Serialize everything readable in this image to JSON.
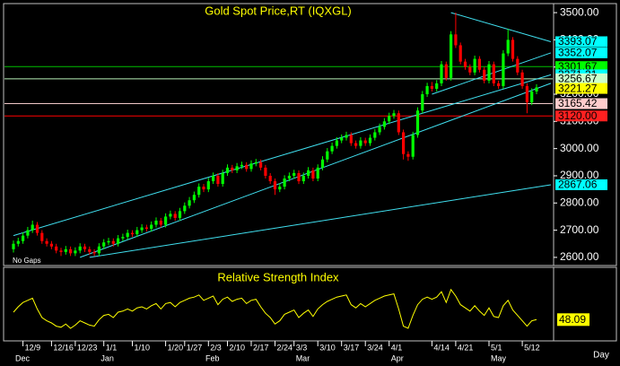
{
  "chart_data": [
    {
      "type": "candlestick",
      "title": "Gold Spot Price,RT (IQXGL)",
      "annotation": "No Gaps",
      "xlabel": "Day",
      "up_color": "#00ff00",
      "down_color": "#ff0000",
      "ylim": [
        2570,
        3530
      ],
      "yticks": [
        {
          "value": 2600,
          "label": "2600.00"
        },
        {
          "value": 2700,
          "label": "2700.00"
        },
        {
          "value": 2800,
          "label": "2800.00"
        },
        {
          "value": 2900,
          "label": "2900.00"
        },
        {
          "value": 3000,
          "label": "3000.00"
        },
        {
          "value": 3100,
          "label": "3100.00"
        },
        {
          "value": 3200,
          "label": "3200.00"
        },
        {
          "value": 3300,
          "label": "3300.00"
        },
        {
          "value": 3400,
          "label": "3400.00"
        },
        {
          "value": 3500,
          "label": "3500.00"
        }
      ],
      "categories": [
        null,
        null,
        "12/9",
        null,
        null,
        null,
        null,
        null,
        "12/16",
        null,
        null,
        null,
        null,
        "12/23",
        null,
        null,
        null,
        null,
        null,
        "1/1",
        null,
        null,
        null,
        null,
        null,
        "1/10",
        null,
        null,
        null,
        null,
        null,
        null,
        "1/20",
        null,
        null,
        null,
        "1/27",
        null,
        null,
        null,
        null,
        "2/3",
        null,
        null,
        null,
        "2/10",
        null,
        null,
        null,
        null,
        "2/17",
        null,
        null,
        null,
        null,
        "2/24",
        null,
        null,
        null,
        "3/3",
        null,
        null,
        null,
        null,
        "3/10",
        null,
        null,
        null,
        null,
        "3/17",
        null,
        null,
        null,
        null,
        "3/24",
        null,
        null,
        null,
        null,
        "4/1",
        null,
        null,
        null,
        null,
        null,
        null,
        null,
        null,
        "4/14",
        null,
        null,
        null,
        null,
        "4/21",
        null,
        null,
        null,
        null,
        null,
        null,
        "5/1",
        null,
        null,
        null,
        null,
        null,
        null,
        "5/12",
        null,
        null,
        null
      ],
      "months": [
        "Dec",
        null,
        null,
        null,
        null,
        null,
        null,
        null,
        null,
        null,
        null,
        null,
        null,
        null,
        null,
        null,
        null,
        null,
        "Jan",
        null,
        null,
        null,
        null,
        null,
        null,
        null,
        null,
        null,
        null,
        null,
        null,
        null,
        null,
        null,
        null,
        null,
        null,
        null,
        null,
        null,
        "Feb",
        null,
        null,
        null,
        null,
        null,
        null,
        null,
        null,
        null,
        null,
        null,
        null,
        null,
        null,
        null,
        null,
        null,
        null,
        "Mar",
        null,
        null,
        null,
        null,
        null,
        null,
        null,
        null,
        null,
        null,
        null,
        null,
        null,
        null,
        null,
        null,
        null,
        null,
        null,
        "Apr",
        null,
        null,
        null,
        null,
        null,
        null,
        null,
        null,
        null,
        null,
        null,
        null,
        null,
        null,
        null,
        null,
        null,
        null,
        null,
        null,
        "May",
        null,
        null,
        null,
        null,
        null,
        null,
        null,
        null,
        null,
        null
      ],
      "candles": [
        [
          2630,
          2662,
          2618,
          2650
        ],
        [
          2650,
          2672,
          2640,
          2660
        ],
        [
          2660,
          2692,
          2650,
          2680
        ],
        [
          2680,
          2712,
          2670,
          2700
        ],
        [
          2700,
          2735,
          2690,
          2720
        ],
        [
          2720,
          2730,
          2680,
          2690
        ],
        [
          2690,
          2700,
          2650,
          2660
        ],
        [
          2660,
          2670,
          2640,
          2650
        ],
        [
          2650,
          2660,
          2630,
          2640
        ],
        [
          2640,
          2650,
          2615,
          2625
        ],
        [
          2625,
          2635,
          2605,
          2620
        ],
        [
          2620,
          2642,
          2610,
          2630
        ],
        [
          2630,
          2640,
          2605,
          2615
        ],
        [
          2615,
          2637,
          2605,
          2625
        ],
        [
          2625,
          2652,
          2615,
          2640
        ],
        [
          2640,
          2650,
          2620,
          2630
        ],
        [
          2630,
          2640,
          2610,
          2620
        ],
        [
          2620,
          2630,
          2605,
          2615
        ],
        [
          2615,
          2652,
          2605,
          2640
        ],
        [
          2640,
          2667,
          2630,
          2655
        ],
        [
          2655,
          2672,
          2645,
          2660
        ],
        [
          2660,
          2670,
          2640,
          2650
        ],
        [
          2650,
          2682,
          2640,
          2670
        ],
        [
          2670,
          2687,
          2660,
          2675
        ],
        [
          2675,
          2702,
          2665,
          2690
        ],
        [
          2690,
          2700,
          2675,
          2685
        ],
        [
          2685,
          2712,
          2675,
          2700
        ],
        [
          2700,
          2722,
          2690,
          2710
        ],
        [
          2710,
          2720,
          2695,
          2705
        ],
        [
          2705,
          2732,
          2695,
          2720
        ],
        [
          2720,
          2747,
          2710,
          2735
        ],
        [
          2735,
          2745,
          2710,
          2720
        ],
        [
          2720,
          2762,
          2710,
          2750
        ],
        [
          2750,
          2772,
          2740,
          2760
        ],
        [
          2760,
          2770,
          2735,
          2745
        ],
        [
          2745,
          2782,
          2735,
          2770
        ],
        [
          2770,
          2802,
          2760,
          2790
        ],
        [
          2790,
          2822,
          2780,
          2810
        ],
        [
          2810,
          2842,
          2800,
          2830
        ],
        [
          2830,
          2872,
          2820,
          2860
        ],
        [
          2860,
          2870,
          2840,
          2850
        ],
        [
          2850,
          2892,
          2840,
          2880
        ],
        [
          2880,
          2912,
          2870,
          2900
        ],
        [
          2900,
          2910,
          2860,
          2870
        ],
        [
          2870,
          2922,
          2860,
          2910
        ],
        [
          2910,
          2942,
          2900,
          2930
        ],
        [
          2930,
          2940,
          2910,
          2920
        ],
        [
          2920,
          2947,
          2910,
          2935
        ],
        [
          2935,
          2952,
          2925,
          2940
        ],
        [
          2940,
          2950,
          2915,
          2925
        ],
        [
          2925,
          2957,
          2915,
          2945
        ],
        [
          2945,
          2962,
          2935,
          2950
        ],
        [
          2950,
          2960,
          2920,
          2930
        ],
        [
          2930,
          2940,
          2890,
          2900
        ],
        [
          2900,
          2910,
          2870,
          2880
        ],
        [
          2880,
          2890,
          2830,
          2850
        ],
        [
          2850,
          2872,
          2840,
          2860
        ],
        [
          2860,
          2902,
          2850,
          2890
        ],
        [
          2890,
          2912,
          2880,
          2900
        ],
        [
          2900,
          2922,
          2890,
          2910
        ],
        [
          2910,
          2920,
          2870,
          2880
        ],
        [
          2880,
          2912,
          2870,
          2900
        ],
        [
          2900,
          2932,
          2890,
          2920
        ],
        [
          2920,
          2930,
          2880,
          2890
        ],
        [
          2890,
          2942,
          2880,
          2930
        ],
        [
          2930,
          2972,
          2920,
          2960
        ],
        [
          2960,
          3002,
          2950,
          2990
        ],
        [
          2990,
          3022,
          2980,
          3010
        ],
        [
          3010,
          3042,
          3000,
          3030
        ],
        [
          3030,
          3052,
          3020,
          3040
        ],
        [
          3040,
          3062,
          3030,
          3050
        ],
        [
          3050,
          3060,
          3010,
          3020
        ],
        [
          3020,
          3030,
          3000,
          3010
        ],
        [
          3010,
          3042,
          3000,
          3030
        ],
        [
          3030,
          3040,
          3010,
          3020
        ],
        [
          3020,
          3052,
          3010,
          3040
        ],
        [
          3040,
          3072,
          3030,
          3060
        ],
        [
          3060,
          3092,
          3050,
          3080
        ],
        [
          3080,
          3112,
          3070,
          3100
        ],
        [
          3100,
          3132,
          3090,
          3120
        ],
        [
          3120,
          3142,
          3110,
          3130
        ],
        [
          3130,
          3140,
          3050,
          3060
        ],
        [
          3060,
          3070,
          2960,
          2980
        ],
        [
          2980,
          2990,
          2955,
          2970
        ],
        [
          2970,
          3062,
          2960,
          3050
        ],
        [
          3050,
          3152,
          3040,
          3140
        ],
        [
          3140,
          3212,
          3130,
          3200
        ],
        [
          3200,
          3242,
          3190,
          3230
        ],
        [
          3230,
          3245,
          3210,
          3220
        ],
        [
          3220,
          3252,
          3210,
          3240
        ],
        [
          3240,
          3322,
          3230,
          3310
        ],
        [
          3310,
          3320,
          3250,
          3260
        ],
        [
          3260,
          3432,
          3250,
          3420
        ],
        [
          3420,
          3500,
          3370,
          3380
        ],
        [
          3380,
          3390,
          3310,
          3320
        ],
        [
          3320,
          3330,
          3290,
          3300
        ],
        [
          3300,
          3310,
          3270,
          3280
        ],
        [
          3280,
          3342,
          3270,
          3330
        ],
        [
          3330,
          3340,
          3280,
          3290
        ],
        [
          3290,
          3300,
          3240,
          3250
        ],
        [
          3250,
          3322,
          3240,
          3310
        ],
        [
          3310,
          3320,
          3230,
          3240
        ],
        [
          3240,
          3250,
          3220,
          3230
        ],
        [
          3230,
          3362,
          3220,
          3350
        ],
        [
          3350,
          3440,
          3340,
          3400
        ],
        [
          3400,
          3410,
          3320,
          3330
        ],
        [
          3330,
          3340,
          3270,
          3280
        ],
        [
          3280,
          3290,
          3220,
          3230
        ],
        [
          3230,
          3240,
          3130,
          3170
        ],
        [
          3170,
          3222,
          3160,
          3210
        ],
        [
          3210,
          3237,
          3200,
          3225
        ]
      ],
      "levels": [
        {
          "value": 3301.67,
          "label": "3301.67",
          "color": "#00c000"
        },
        {
          "value": 3256.67,
          "label": "3256.67",
          "color": "#b8f0b8"
        },
        {
          "value": 3165.42,
          "label": "3165.42",
          "color": "#f0c8c8"
        },
        {
          "value": 3120,
          "label": "3120.00",
          "color": "#ff0000"
        }
      ],
      "trendlines": [
        {
          "x": [
            0,
            113
          ],
          "y": [
            2680,
            3271.31
          ]
        },
        {
          "x": [
            14,
            113
          ],
          "y": [
            2600,
            3240
          ]
        },
        {
          "x": [
            16,
            113
          ],
          "y": [
            2600,
            2867.06
          ]
        },
        {
          "x": [
            92,
            113
          ],
          "y": [
            3500,
            3393.07
          ]
        },
        {
          "x": [
            88,
            113
          ],
          "y": [
            3200,
            3352.07
          ]
        }
      ],
      "trend_color": "#40e0f0",
      "right_labels": [
        {
          "value": 3393.07,
          "label": "3393.07",
          "color": "#00ffff"
        },
        {
          "value": 3352.07,
          "label": "3352.07",
          "color": "#00ffff"
        },
        {
          "value": 3301.67,
          "label": "3301.67",
          "color": "#00ff00"
        },
        {
          "value": 3271.31,
          "label": "3271.31",
          "color": "#00ffff"
        },
        {
          "value": 3256.67,
          "label": "3256.67",
          "color": "#ccffcc"
        },
        {
          "value": 3221.27,
          "label": "3221.27",
          "color": "#ffff00"
        },
        {
          "value": 3165.42,
          "label": "3165.42",
          "color": "#ffcccc"
        },
        {
          "value": 3120,
          "label": "3120.00",
          "color": "#ff2020"
        },
        {
          "value": 2867.06,
          "label": "2867.06",
          "color": "#00ffff"
        }
      ]
    },
    {
      "type": "line",
      "title": "Relative Strength Index",
      "color": "#ffff00",
      "ylim": [
        30,
        80
      ],
      "label_color": "#ffff00",
      "values": [
        55,
        60,
        64,
        66,
        68,
        58,
        50,
        47,
        45,
        42,
        41,
        44,
        40,
        43,
        47,
        45,
        43,
        42,
        48,
        52,
        53,
        50,
        55,
        56,
        58,
        56,
        59,
        60,
        58,
        61,
        63,
        58,
        63,
        64,
        60,
        64,
        66,
        68,
        69,
        71,
        66,
        68,
        70,
        62,
        67,
        69,
        65,
        67,
        68,
        63,
        66,
        67,
        60,
        54,
        50,
        44,
        47,
        53,
        55,
        57,
        50,
        54,
        57,
        51,
        58,
        62,
        65,
        67,
        69,
        70,
        71,
        62,
        59,
        63,
        60,
        63,
        66,
        68,
        70,
        71,
        72,
        58,
        42,
        40,
        52,
        62,
        67,
        69,
        67,
        69,
        74,
        64,
        76,
        70,
        62,
        59,
        56,
        61,
        56,
        52,
        59,
        51,
        50,
        61,
        66,
        57,
        52,
        47,
        42,
        47,
        48.09
      ]
    }
  ]
}
